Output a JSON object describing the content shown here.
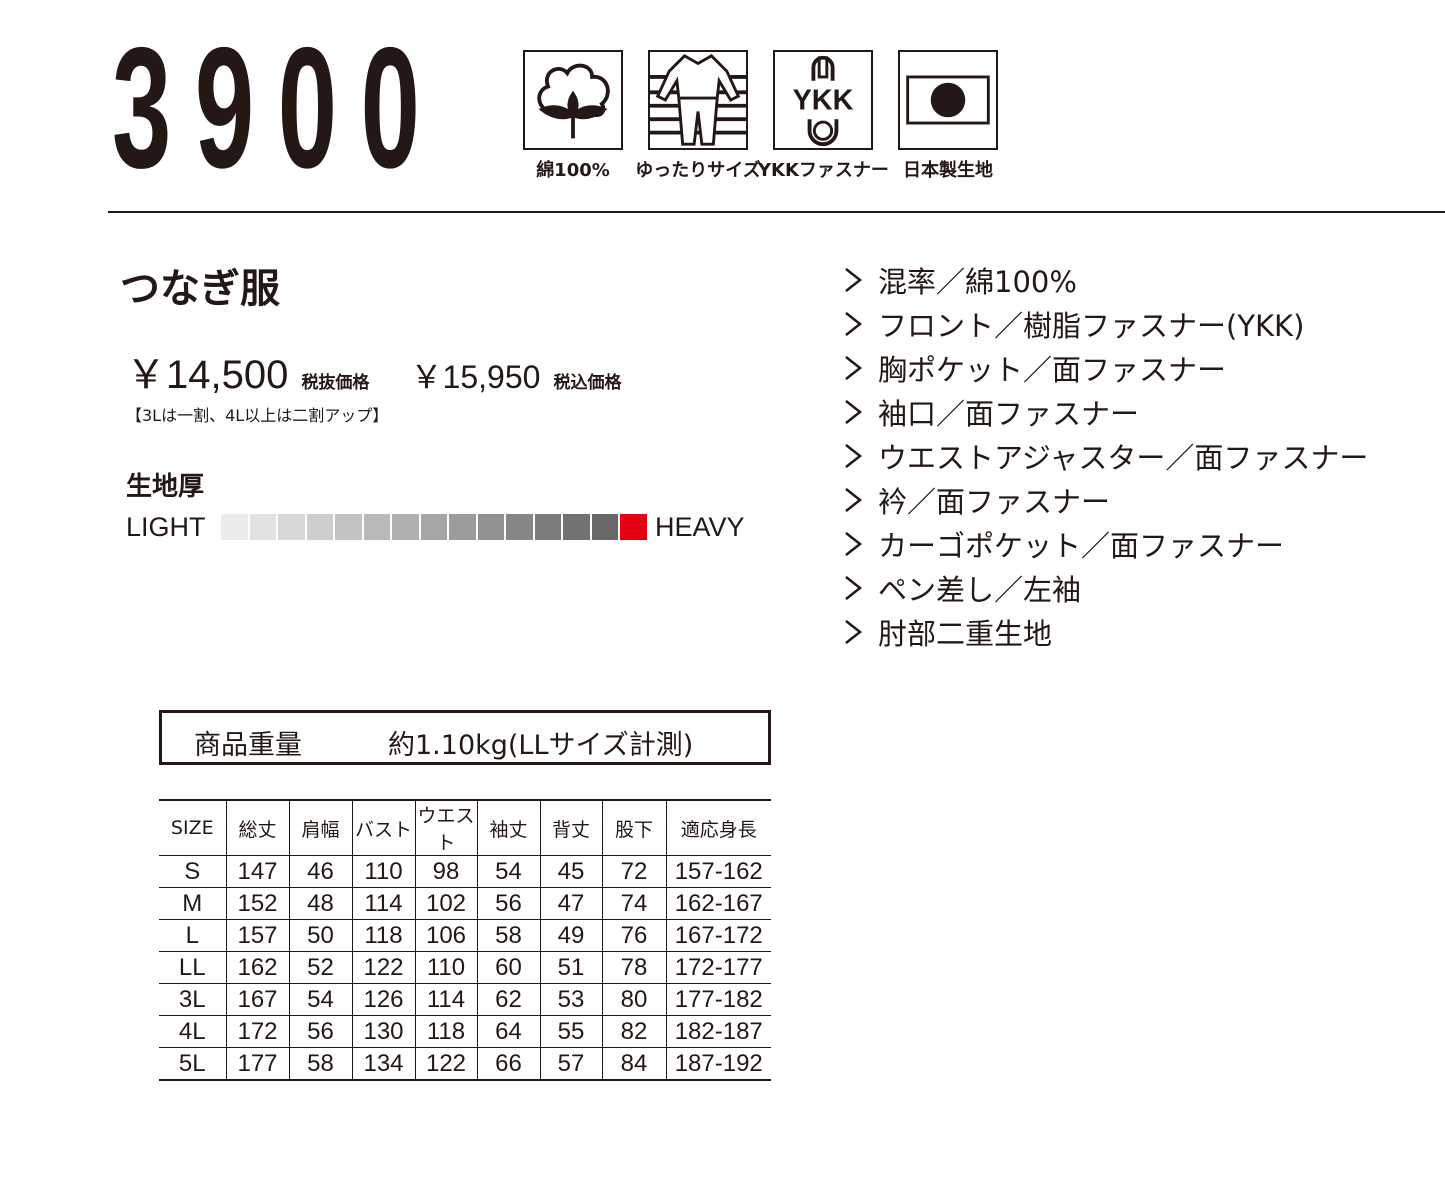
{
  "model_number": "3900",
  "feature_icons": [
    {
      "icon": "cotton-icon",
      "label": "綿100%"
    },
    {
      "icon": "relaxed-fit-coverall-icon",
      "label": "ゆったりサイズ"
    },
    {
      "icon": "ykk-zipper-icon",
      "label": "YKKファスナー",
      "logo_text": "YKK"
    },
    {
      "icon": "japan-flag-icon",
      "label": "日本製生地"
    }
  ],
  "product_type": "つなぎ服",
  "price": {
    "excl": "￥14,500",
    "excl_label": "税抜価格",
    "incl": "￥15,950",
    "incl_label": "税込価格",
    "note": "【3Lは一割、4L以上は二割アップ】"
  },
  "thickness": {
    "title": "生地厚",
    "low_label": "LIGHT",
    "high_label": "HEAVY",
    "level": 15,
    "max": 15,
    "accent": "#e60012"
  },
  "features": [
    "混率／綿100%",
    "フロント／樹脂ファスナー(YKK)",
    "胸ポケット／面ファスナー",
    "袖口／面ファスナー",
    "ウエストアジャスター／面ファスナー",
    "衿／面ファスナー",
    "カーゴポケット／面ファスナー",
    "ペン差し／左袖",
    "肘部二重生地"
  ],
  "weight": {
    "label": "商品重量",
    "value": "約1.10kg(LLサイズ計測)"
  },
  "size_table": {
    "headers": [
      "SIZE",
      "総丈",
      "肩幅",
      "バスト",
      "ウエスト",
      "袖丈",
      "背丈",
      "股下",
      "適応身長"
    ],
    "rows": [
      [
        "S",
        "147",
        "46",
        "110",
        "98",
        "54",
        "45",
        "72",
        "157-162"
      ],
      [
        "M",
        "152",
        "48",
        "114",
        "102",
        "56",
        "47",
        "74",
        "162-167"
      ],
      [
        "L",
        "157",
        "50",
        "118",
        "106",
        "58",
        "49",
        "76",
        "167-172"
      ],
      [
        "LL",
        "162",
        "52",
        "122",
        "110",
        "60",
        "51",
        "78",
        "172-177"
      ],
      [
        "3L",
        "167",
        "54",
        "126",
        "114",
        "62",
        "53",
        "80",
        "177-182"
      ],
      [
        "4L",
        "172",
        "56",
        "130",
        "118",
        "64",
        "55",
        "82",
        "182-187"
      ],
      [
        "5L",
        "177",
        "58",
        "134",
        "122",
        "66",
        "57",
        "84",
        "187-192"
      ]
    ]
  }
}
